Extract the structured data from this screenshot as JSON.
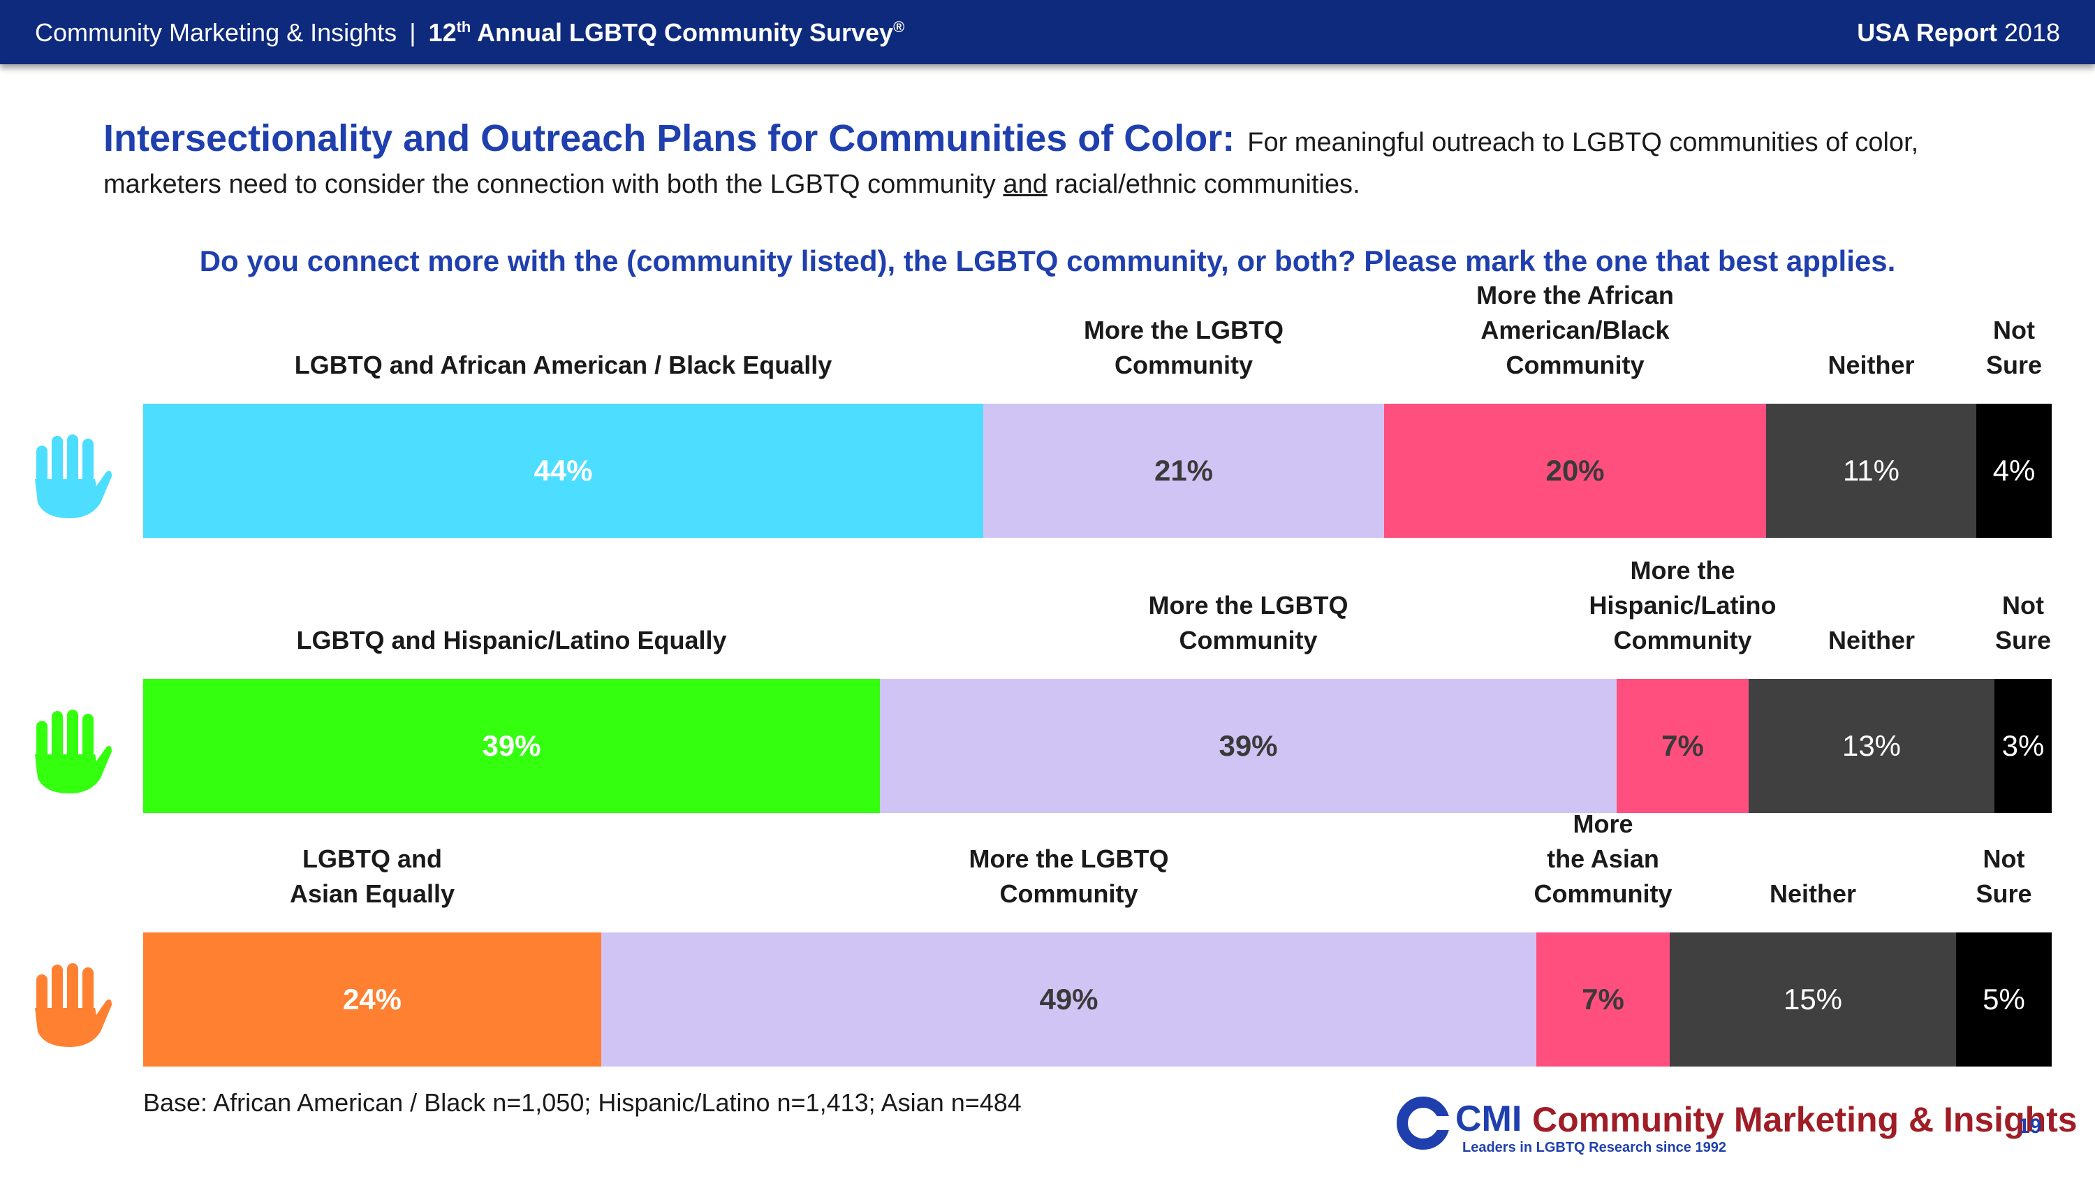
{
  "header": {
    "org": "Community Marketing & Insights",
    "separator": "|",
    "survey_prefix": "12",
    "survey_sup": "th",
    "survey_rest": " Annual LGBTQ Community Survey",
    "survey_mark": "®",
    "report_bold": "USA Report",
    "report_year": "2018"
  },
  "title": {
    "lead": "Intersectionality and Outreach Plans for Communities of Color:",
    "text1": "For meaningful outreach to LGBTQ communities of color, marketers need to consider the connection with both the LGBTQ community ",
    "and_word": "and",
    "text2": " racial/ethnic communities."
  },
  "question": "Do you connect more with the (community listed), the LGBTQ community, or both? Please mark the one that best applies.",
  "colors": {
    "header_bg": "#0e2a7d",
    "title_blue": "#1f3fae",
    "lavender": "#d0c4f4",
    "pink": "#ff4f7e",
    "dark_gray": "#404040",
    "black": "#000000",
    "cyan": "#4dddff",
    "green": "#33ff0f",
    "orange": "#ff8030",
    "logo_red": "#a01d26"
  },
  "chart_data": {
    "type": "bar",
    "orientation": "horizontal",
    "stacked": true,
    "unit": "%",
    "series": [
      {
        "name": "African American / Black",
        "icon": "hand-icon",
        "categories": [
          "LGBTQ and African American / Black Equally",
          "More the LGBTQ Community",
          "More the African American/Black Community",
          "Neither",
          "Not Sure"
        ],
        "values": [
          44,
          21,
          20,
          11,
          4
        ],
        "value_labels": [
          "44%",
          "21%",
          "20%",
          "11%",
          "4%"
        ]
      },
      {
        "name": "Hispanic/Latino",
        "icon": "hand-icon",
        "categories": [
          "LGBTQ and Hispanic/Latino Equally",
          "More the LGBTQ Community",
          "More the Hispanic/Latino Community",
          "Neither",
          "Not Sure"
        ],
        "values": [
          39,
          39,
          7,
          13,
          3
        ],
        "value_labels": [
          "39%",
          "39%",
          "7%",
          "13%",
          "3%"
        ]
      },
      {
        "name": "Asian",
        "icon": "hand-icon",
        "categories": [
          "LGBTQ and Asian Equally",
          "More the LGBTQ Community",
          "More the Asian Community",
          "Neither",
          "Not Sure"
        ],
        "values": [
          24,
          49,
          7,
          15,
          5
        ],
        "value_labels": [
          "24%",
          "49%",
          "7%",
          "15%",
          "5%"
        ]
      }
    ]
  },
  "footer": {
    "base": "Base: African American / Black n=1,050; Hispanic/Latino n=1,413; Asian n=484",
    "logo_cmi": "CMI",
    "logo_name": "Community Marketing & Insights",
    "logo_tag": "Leaders in LGBTQ Research since 1992",
    "page": "19"
  }
}
